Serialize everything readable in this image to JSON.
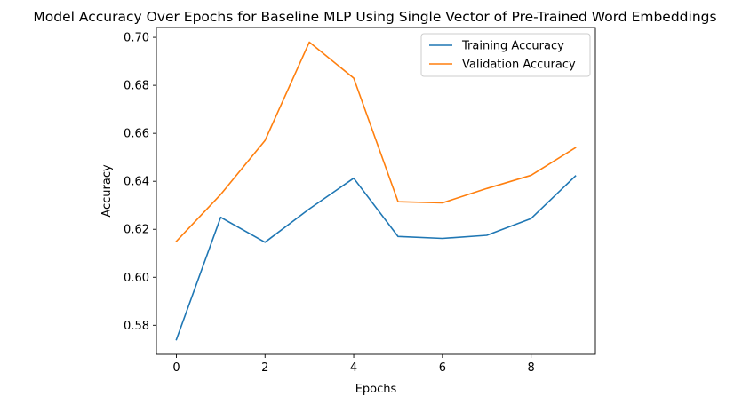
{
  "chart_data": {
    "type": "line",
    "title": "Model Accuracy Over Epochs for Baseline MLP Using Single Vector of Pre-Trained Word Embeddings",
    "xlabel": "Epochs",
    "ylabel": "Accuracy",
    "x": [
      0,
      1,
      2,
      3,
      4,
      5,
      6,
      7,
      8,
      9
    ],
    "xlim": [
      -0.45,
      9.45
    ],
    "ylim": [
      0.5679,
      0.7041
    ],
    "xticks": [
      0,
      2,
      4,
      6,
      8
    ],
    "xtick_labels": [
      "0",
      "2",
      "4",
      "6",
      "8"
    ],
    "yticks": [
      0.58,
      0.6,
      0.62,
      0.64,
      0.66,
      0.68,
      0.7
    ],
    "ytick_labels": [
      "0.58",
      "0.60",
      "0.62",
      "0.64",
      "0.66",
      "0.68",
      "0.70"
    ],
    "grid": false,
    "legend_position": "top-right",
    "series": [
      {
        "name": "Training Accuracy",
        "color": "#1f77b4",
        "values": [
          0.574,
          0.625,
          0.6146,
          0.6285,
          0.6413,
          0.617,
          0.6162,
          0.6175,
          0.6245,
          0.6422
        ]
      },
      {
        "name": "Validation Accuracy",
        "color": "#ff7f0e",
        "values": [
          0.615,
          0.6345,
          0.657,
          0.698,
          0.683,
          0.6315,
          0.631,
          0.637,
          0.6425,
          0.654
        ]
      }
    ]
  }
}
